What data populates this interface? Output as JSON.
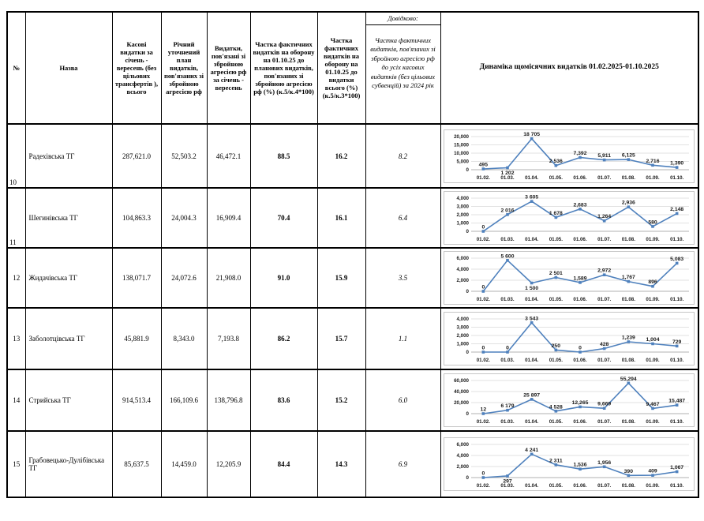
{
  "table": {
    "columns": {
      "num": "№",
      "name": "Назва",
      "cash": "Касові видатки за січень - вересень (без цільових трансфертів ), всього",
      "plan": "Річний уточнений план видатків, пов'язаних зі збройною агресією рф",
      "spent": "Видатки, пов'язані зі збройною агресією рф за січень - вересень",
      "share_plan": "Частка фактичних видатків на оборону на 01.10.25 до планових видатків, пов'язаних зі збройною агресією рф (%) (к.5/к.4*100)",
      "share_total": "Частка фактичних видатків на оборону на 01.10.25 до видатки всього (%) (к.5/к.3*100)",
      "ref_title": "Довідково:",
      "ref_note": "Частка фактичних видатків, пов'язаних зі збройною агресією рф до усіх касових видатків (без цільових субвенцій) за 2024 рік",
      "dynamics": "Динаміка щомісячних видатків 01.02.2025-01.10.2025"
    },
    "rows": [
      {
        "num": "10",
        "name": "Радехівська ТГ",
        "cash": "287,621.0",
        "plan": "52,503.2",
        "spent": "46,472.1",
        "share_plan": "88.5",
        "share_total": "16.2",
        "ref": "8.2"
      },
      {
        "num": "11",
        "name": "Шегинівська ТГ",
        "cash": "104,863.3",
        "plan": "24,004.3",
        "spent": "16,909.4",
        "share_plan": "70.4",
        "share_total": "16.1",
        "ref": "6.4"
      },
      {
        "num": "12",
        "name": "Жидачівська ТГ",
        "cash": "138,071.7",
        "plan": "24,072.6",
        "spent": "21,908.0",
        "share_plan": "91.0",
        "share_total": "15.9",
        "ref": "3.5"
      },
      {
        "num": "13",
        "name": "Заболотцівська ТГ",
        "cash": "45,881.9",
        "plan": "8,343.0",
        "spent": "7,193.8",
        "share_plan": "86.2",
        "share_total": "15.7",
        "ref": "1.1"
      },
      {
        "num": "14",
        "name": "Стрийська ТГ",
        "cash": "914,513.4",
        "plan": "166,109.6",
        "spent": "138,796.8",
        "share_plan": "83.6",
        "share_total": "15.2",
        "ref": "6.0"
      },
      {
        "num": "15",
        "name": "Грабовецько-Дулібівська ТГ",
        "cash": "85,637.5",
        "plan": "14,459.0",
        "spent": "12,205.9",
        "share_plan": "84.4",
        "share_total": "14.3",
        "ref": "6.9"
      }
    ]
  },
  "chart_common": {
    "type": "line",
    "x_categories": [
      "01.02.",
      "01.03.",
      "01.04.",
      "01.05.",
      "01.06.",
      "01.07.",
      "01.08.",
      "01.09.",
      "01.10."
    ],
    "line_color": "#4f81bd",
    "grid_color": "#d9d9d9",
    "axis_color": "#b0b0b0",
    "label_color": "#1a1a1a"
  },
  "chart_data": [
    {
      "type": "line",
      "title": "Радехівська ТГ",
      "ymax": 20000,
      "ystep": 5000,
      "yticks": [
        "0",
        "5,000",
        "10,000",
        "15,000",
        "20,000"
      ],
      "values": [
        495,
        1202,
        18705,
        2536,
        7392,
        5911,
        6125,
        2716,
        1390
      ],
      "labels": [
        "495",
        "1 202",
        "18 705",
        "2 536",
        "7,392",
        "5,911",
        "6,125",
        "2,716",
        "1,390"
      ],
      "label_pos": [
        "above",
        "below",
        "above",
        "above",
        "above",
        "above",
        "above",
        "above",
        "above"
      ]
    },
    {
      "type": "line",
      "title": "Шегинівська ТГ",
      "ymax": 4000,
      "ystep": 1000,
      "yticks": [
        "0",
        "1,000",
        "2,000",
        "3,000",
        "4,000"
      ],
      "values": [
        0,
        2016,
        3605,
        1678,
        2683,
        1264,
        2936,
        580,
        2148
      ],
      "labels": [
        "0",
        "2 016",
        "3 605",
        "1 678",
        "2,683",
        "1,264",
        "2,936",
        "580",
        "2,148"
      ],
      "label_pos": [
        "above",
        "above",
        "above",
        "above",
        "above",
        "above",
        "above",
        "above",
        "above"
      ]
    },
    {
      "type": "line",
      "title": "Жидачівська ТГ",
      "ymax": 6000,
      "ystep": 2000,
      "yticks": [
        "0",
        "2,000",
        "4,000",
        "6,000"
      ],
      "values": [
        0,
        5600,
        1500,
        2501,
        1589,
        2972,
        1767,
        896,
        5083
      ],
      "labels": [
        "0",
        "5 600",
        "1 500",
        "2 501",
        "1,589",
        "2,972",
        "1,767",
        "896",
        "5,083"
      ],
      "label_pos": [
        "above",
        "above",
        "below",
        "above",
        "above",
        "above",
        "above",
        "above",
        "above"
      ]
    },
    {
      "type": "line",
      "title": "Заболотцівська ТГ",
      "ymax": 4000,
      "ystep": 1000,
      "yticks": [
        "0",
        "1,000",
        "2,000",
        "3,000",
        "4,000"
      ],
      "values": [
        0,
        0,
        3543,
        250,
        0,
        428,
        1239,
        1004,
        729
      ],
      "labels": [
        "0",
        "0",
        "3 543",
        "250",
        "0",
        "428",
        "1,239",
        "1,004",
        "729"
      ],
      "label_pos": [
        "above",
        "above",
        "above",
        "above",
        "above",
        "above",
        "above",
        "above",
        "above"
      ]
    },
    {
      "type": "line",
      "title": "Стрийська ТГ",
      "ymax": 60000,
      "ystep": 20000,
      "yticks": [
        "0",
        "20,000",
        "40,000",
        "60,000"
      ],
      "values": [
        12,
        6179,
        25897,
        4528,
        12265,
        9669,
        55294,
        9467,
        15487
      ],
      "labels": [
        "12",
        "6 179",
        "25 897",
        "4 528",
        "12,265",
        "9,669",
        "55,294",
        "9,467",
        "15,487"
      ],
      "label_pos": [
        "above",
        "above",
        "above",
        "above",
        "above",
        "above",
        "above",
        "above",
        "above"
      ]
    },
    {
      "type": "line",
      "title": "Грабовецько-Дулібівська ТГ",
      "ymax": 6000,
      "ystep": 2000,
      "yticks": [
        "0",
        "2,000",
        "4,000",
        "6,000"
      ],
      "values": [
        0,
        297,
        4241,
        2311,
        1536,
        1956,
        390,
        409,
        1067
      ],
      "labels": [
        "0",
        "297",
        "4 241",
        "2 311",
        "1,536",
        "1,956",
        "390",
        "409",
        "1,067"
      ],
      "label_pos": [
        "above",
        "below",
        "above",
        "above",
        "above",
        "above",
        "above",
        "above",
        "above"
      ]
    }
  ]
}
